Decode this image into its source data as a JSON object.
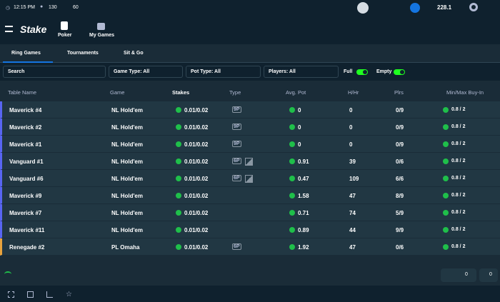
{
  "top_bar": {
    "time": "12:15 PM",
    "players": "130",
    "tables": "60",
    "balance": "228.1"
  },
  "nav": {
    "logo": "Stake",
    "items": [
      "Poker",
      "My Games"
    ]
  },
  "tabs": [
    "Ring Games",
    "Tournaments",
    "Sit & Go"
  ],
  "filters": {
    "search": "Search",
    "game_type": "Game Type: All",
    "pot_type": "Pot Type: All",
    "players": "Players: All",
    "full": "Full",
    "empty": "Empty"
  },
  "table": {
    "columns": [
      "Table Name",
      "Game",
      "Stakes",
      "Type",
      "Avg. Pot",
      "H/Hr",
      "Plrs",
      "Min/Max Buy-In"
    ],
    "rows": [
      [
        "Maverick #4",
        "NL Hold'em",
        "0.01/0.02",
        "9P",
        "0",
        "0",
        "0/9",
        "0.8 / 2"
      ],
      [
        "Maverick #2",
        "NL Hold'em",
        "0.01/0.02",
        "9P",
        "0",
        "0",
        "0/9",
        "0.8 / 2"
      ],
      [
        "Maverick #1",
        "NL Hold'em",
        "0.01/0.02",
        "9P",
        "0",
        "0",
        "0/9",
        "0.8 / 2"
      ],
      [
        "Vanguard #1",
        "NL Hold'em",
        "0.01/0.02",
        "6P",
        "0.91",
        "39",
        "0/6",
        "0.8 / 2"
      ],
      [
        "Vanguard #6",
        "NL Hold'em",
        "0.01/0.02",
        "6P",
        "0.47",
        "109",
        "6/6",
        "0.8 / 2"
      ],
      [
        "Maverick #9",
        "NL Hold'em",
        "0.01/0.02",
        null,
        "1.58",
        "47",
        "8/9",
        "0.8 / 2"
      ],
      [
        "Maverick #7",
        "NL Hold'em",
        "0.01/0.02",
        null,
        "0.71",
        "74",
        "5/9",
        "0.8 / 2"
      ],
      [
        "Maverick #11",
        "NL Hold'em",
        "0.01/0.02",
        null,
        "0.89",
        "44",
        "9/9",
        "0.8 / 2"
      ],
      [
        "Renegade #2",
        "PL Omaha",
        "0.01/0.02",
        "6P",
        "1.92",
        "47",
        "0/6",
        "0.8 / 2"
      ]
    ]
  },
  "footer": {
    "counts": [
      "0",
      "0"
    ]
  }
}
